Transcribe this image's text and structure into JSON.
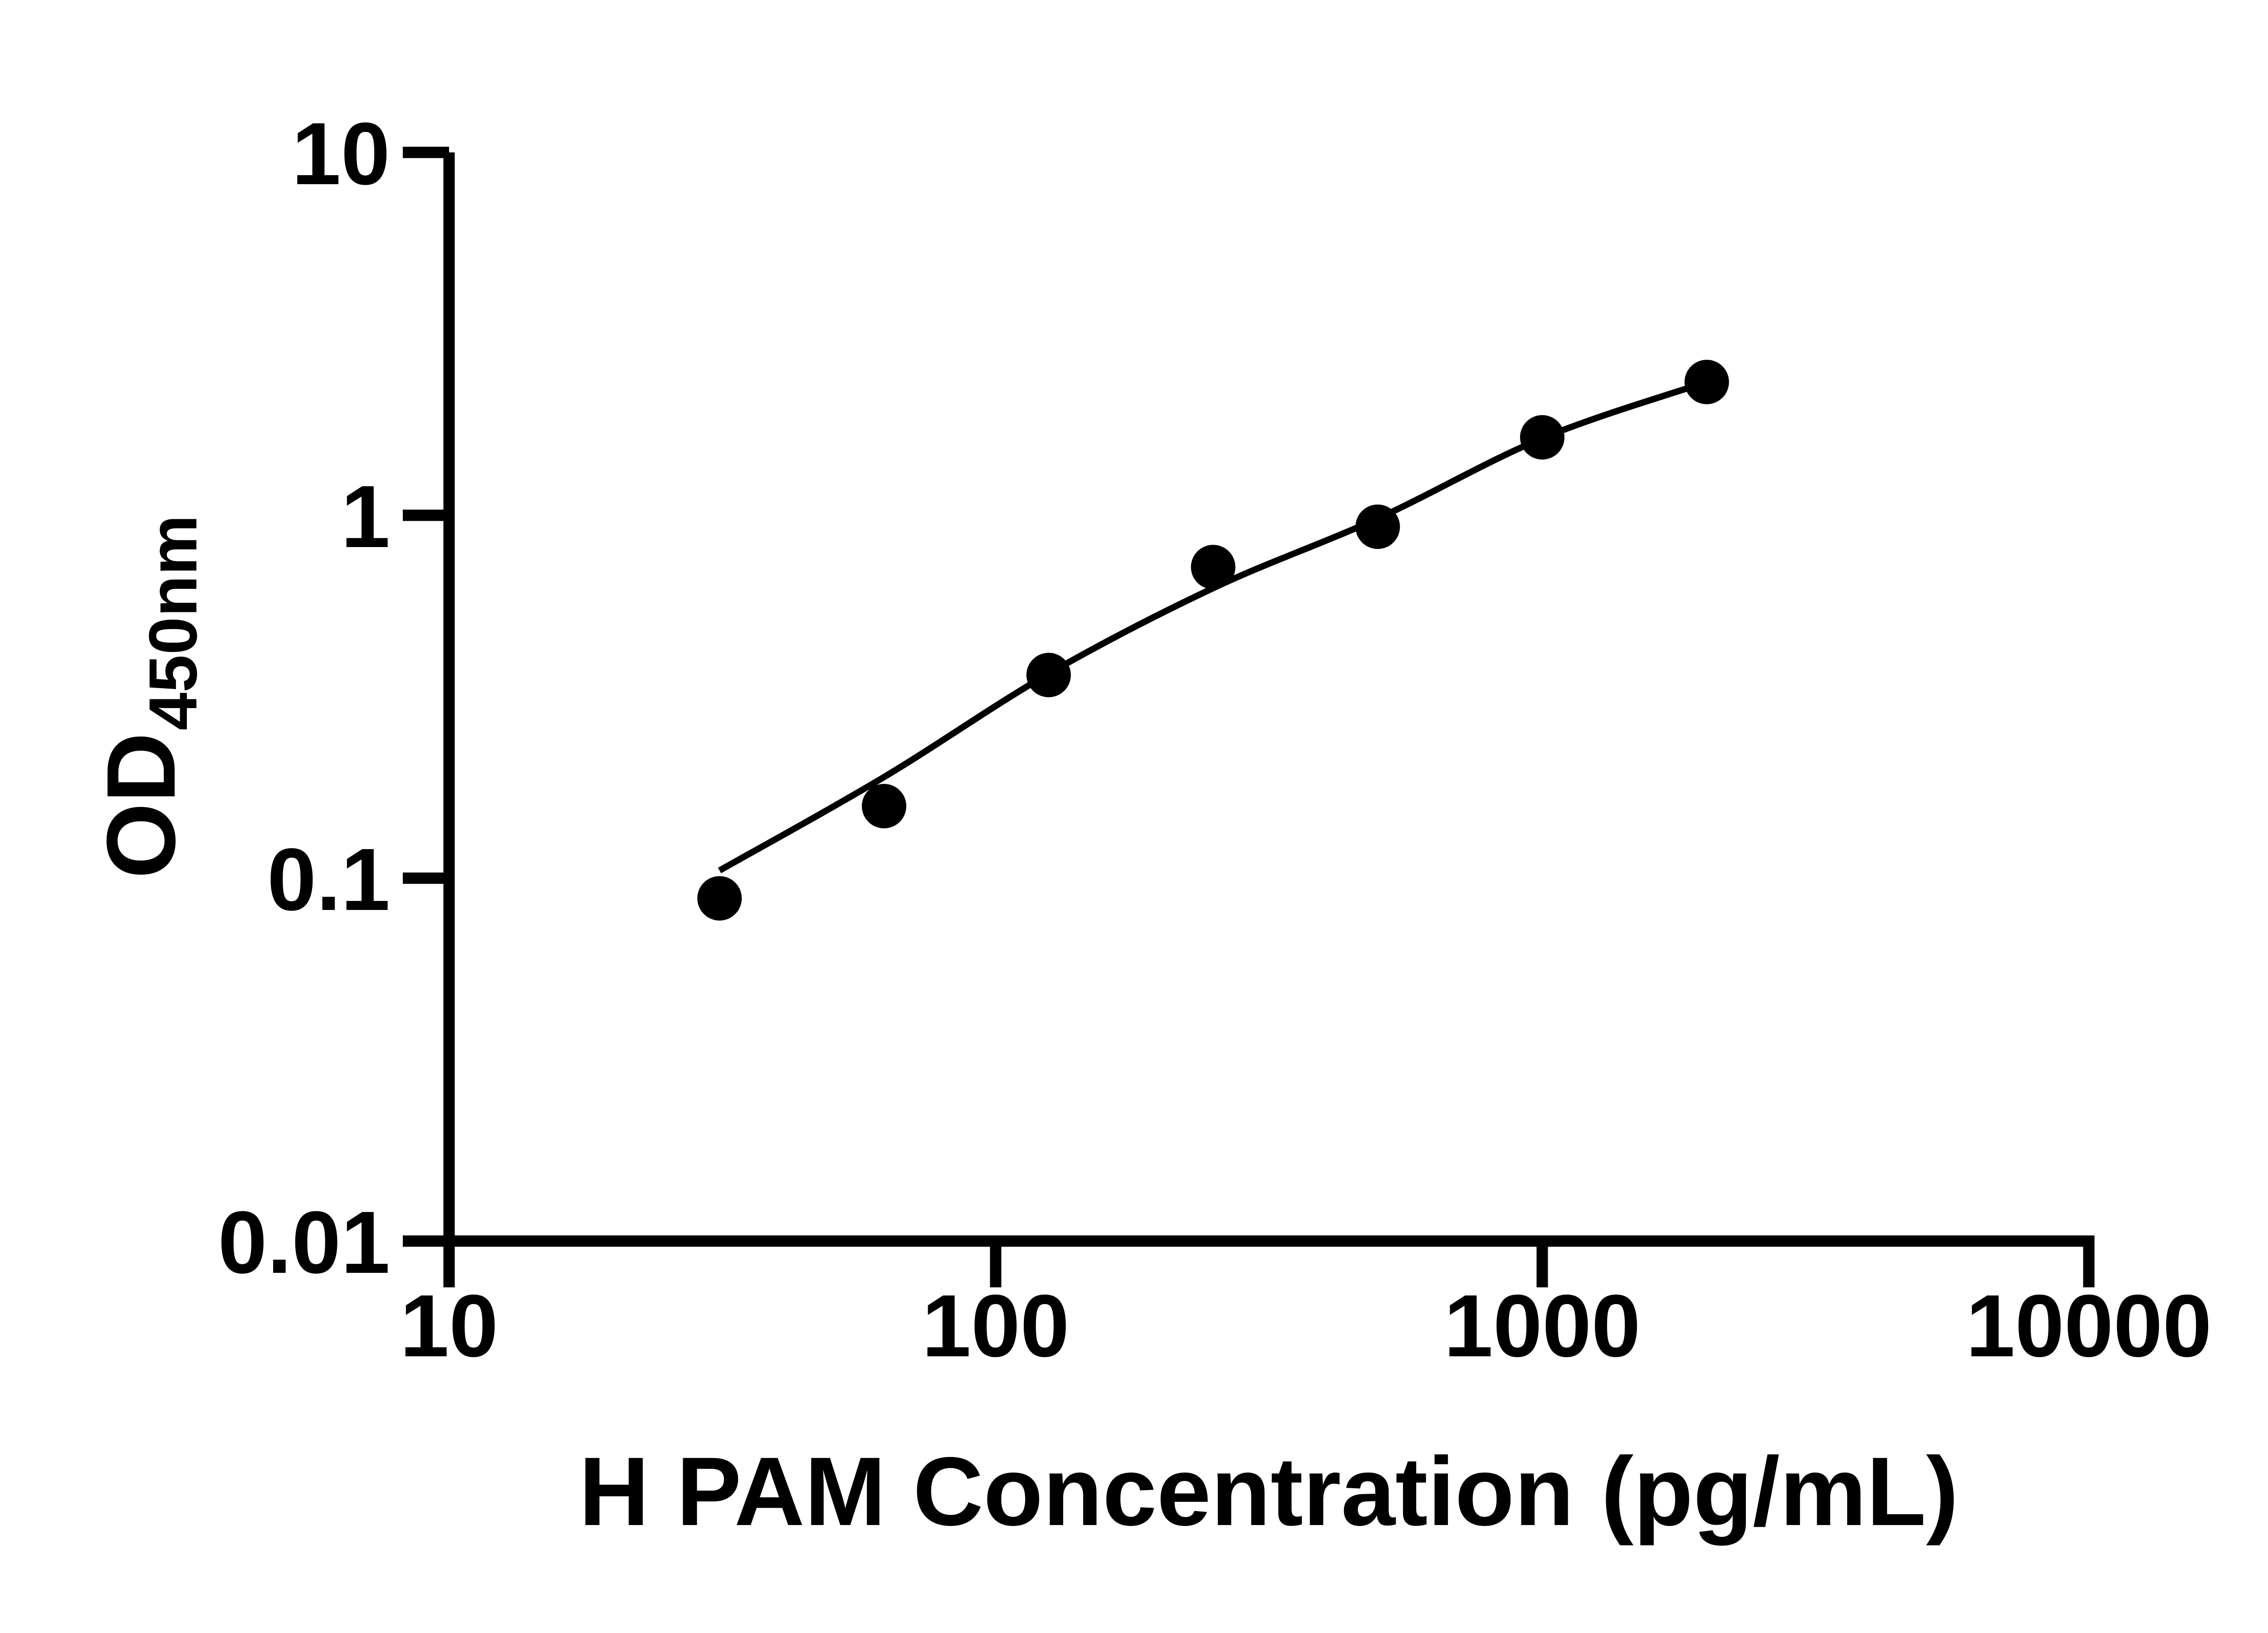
{
  "chart_data": {
    "type": "scatter",
    "title": "",
    "xlabel": "H PAM Concentration (pg/mL)",
    "ylabel": "OD450nm",
    "ylabel_main": "OD",
    "ylabel_sub": "450nm",
    "x_scale": "log",
    "y_scale": "log",
    "xlim": [
      10,
      10000
    ],
    "ylim": [
      0.01,
      10
    ],
    "grid": false,
    "legend": false,
    "background_color": "#ffffff",
    "axis_color": "#000000",
    "marker": {
      "shape": "filled-circle",
      "color": "#000000"
    },
    "line_color": "#000000",
    "x_ticks": [
      {
        "value": 10,
        "label": "10"
      },
      {
        "value": 100,
        "label": "100"
      },
      {
        "value": 1000,
        "label": "1000"
      },
      {
        "value": 10000,
        "label": "10000"
      }
    ],
    "y_ticks": [
      {
        "value": 10,
        "label": "10"
      },
      {
        "value": 1,
        "label": "1"
      },
      {
        "value": 0.1,
        "label": "0.1"
      },
      {
        "value": 0.01,
        "label": "0.01"
      }
    ],
    "series": [
      {
        "name": "standard-points",
        "type": "scatter",
        "x": [
          31.25,
          62.5,
          125,
          250,
          500,
          1000,
          2000
        ],
        "y": [
          0.088,
          0.158,
          0.363,
          0.72,
          0.93,
          1.64,
          2.33
        ]
      },
      {
        "name": "fit-curve",
        "type": "line",
        "x": [
          31.25,
          62.5,
          125,
          250,
          500,
          1000,
          2000
        ],
        "y": [
          0.105,
          0.19,
          0.366,
          0.63,
          0.98,
          1.63,
          2.33
        ]
      }
    ]
  }
}
